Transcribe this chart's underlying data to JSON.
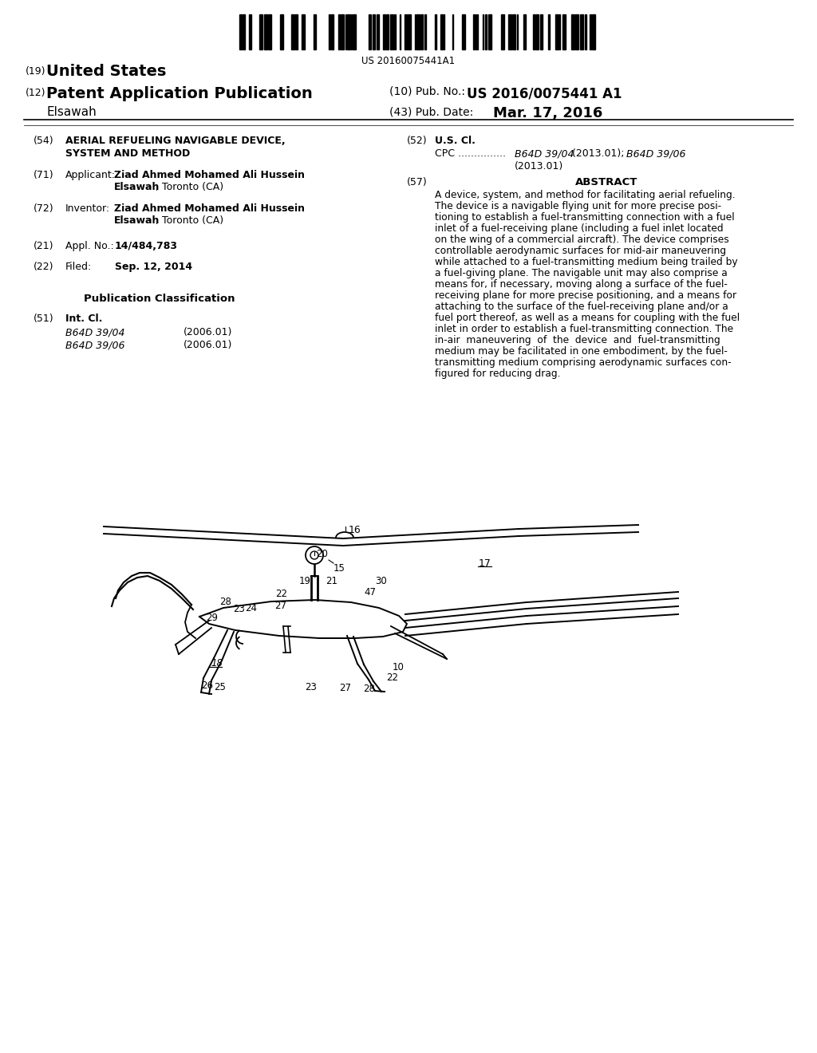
{
  "background_color": "#ffffff",
  "barcode_text": "US 20160075441A1",
  "title_19": "(19) United States",
  "pub_no": "US 2016/0075441 A1",
  "inventor_name": "Elsawah",
  "pub_date": "Mar. 17, 2016",
  "field_54_line1": "AERIAL REFUELING NAVIGABLE DEVICE,",
  "field_54_line2": "SYSTEM AND METHOD",
  "abstract_lines": [
    "A device, system, and method for facilitating aerial refueling.",
    "The device is a navigable flying unit for more precise posi-",
    "tioning to establish a fuel-transmitting connection with a fuel",
    "inlet of a fuel-receiving plane (including a fuel inlet located",
    "on the wing of a commercial aircraft). The device comprises",
    "controllable aerodynamic surfaces for mid-air maneuvering",
    "while attached to a fuel-transmitting medium being trailed by",
    "a fuel-giving plane. The navigable unit may also comprise a",
    "means for, if necessary, moving along a surface of the fuel-",
    "receiving plane for more precise positioning, and a means for",
    "attaching to the surface of the fuel-receiving plane and/or a",
    "fuel port thereof, as well as a means for coupling with the fuel",
    "inlet in order to establish a fuel-transmitting connection. The",
    "in-air  maneuvering  of  the  device  and  fuel-transmitting",
    "medium may be facilitated in one embodiment, by the fuel-",
    "transmitting medium comprising aerodynamic surfaces con-",
    "figured for reducing drag."
  ],
  "b6404": "B64D 39/04",
  "b6406": "B64D 39/06"
}
